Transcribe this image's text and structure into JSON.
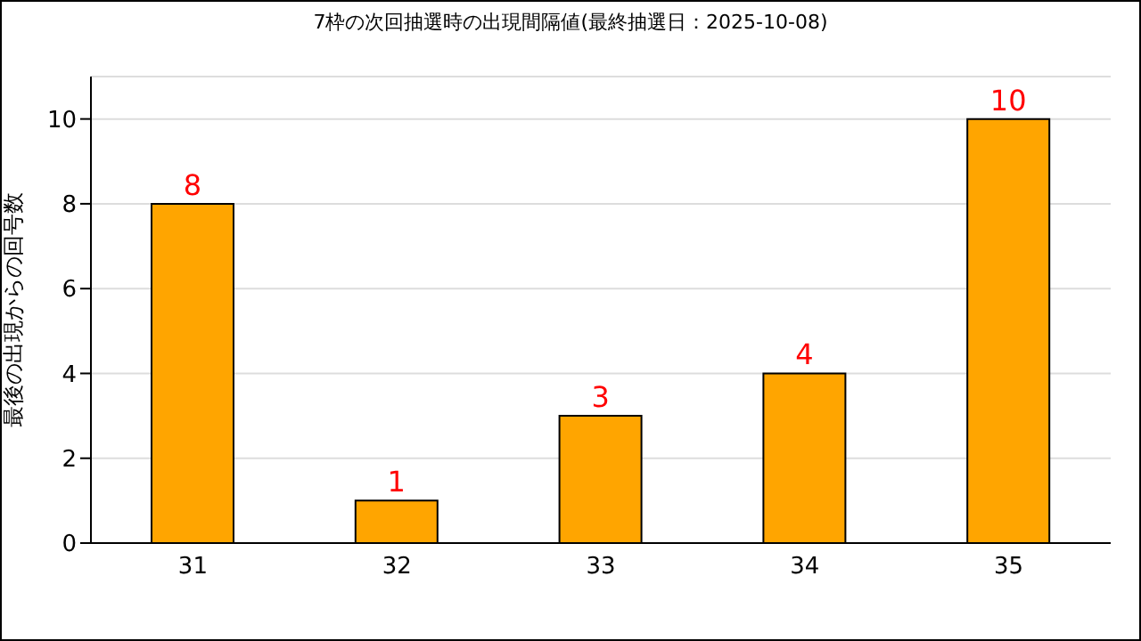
{
  "chart_data": {
    "type": "bar",
    "title": "7枠の次回抽選時の出現間隔値(最終抽選日：2025-10-08)",
    "ylabel": "最後の出現からの回号数",
    "categories": [
      "31",
      "32",
      "33",
      "34",
      "35"
    ],
    "values": [
      8,
      1,
      3,
      4,
      10
    ],
    "color": "#ffa500",
    "ylim": [
      0,
      11
    ],
    "yticks": [
      0,
      2,
      4,
      6,
      8,
      10
    ],
    "grid": "y",
    "data_labels": true
  }
}
